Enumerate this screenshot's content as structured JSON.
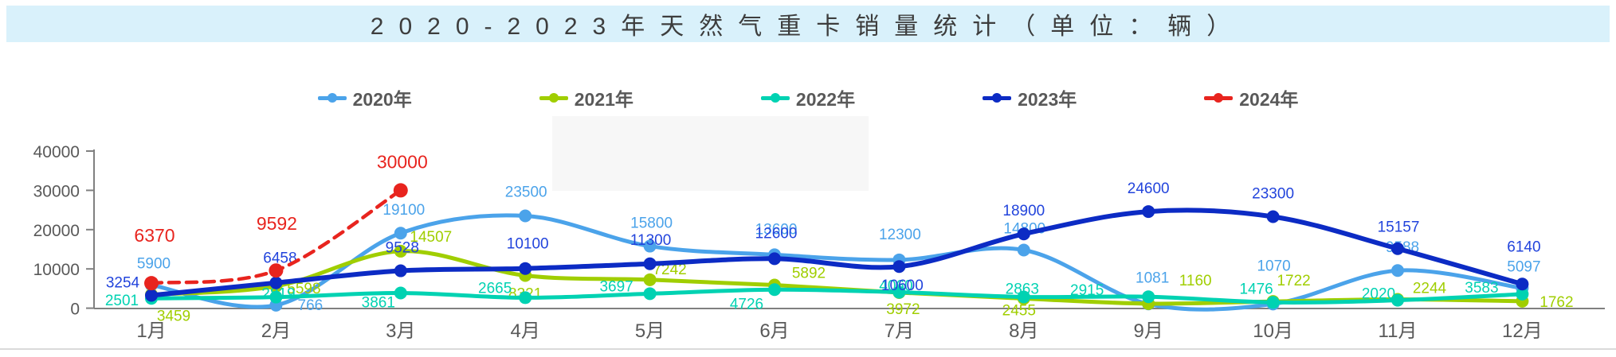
{
  "title_bar": {
    "text": "2020-2023年天然气重卡销量统计（单位：辆）",
    "bg": "#D9F1FB",
    "text_color": "#3D3D3D"
  },
  "axis": {
    "tick_label_color": "#595959",
    "axis_line_color": "#808080"
  },
  "chart_data": {
    "type": "line",
    "title": "2020-2023年天然气重卡销量统计（单位：辆）",
    "xlabel": "",
    "ylabel": "",
    "ylim": [
      0,
      40000
    ],
    "yticks": [
      0,
      10000,
      20000,
      30000,
      40000
    ],
    "grid": false,
    "legend_position": "top",
    "smooth": true,
    "categories": [
      "1月",
      "2月",
      "3月",
      "4月",
      "5月",
      "6月",
      "7月",
      "8月",
      "9月",
      "10月",
      "11月",
      "12月"
    ],
    "series": [
      {
        "name": "2020年",
        "color": "#4BA3EA",
        "label_color": "#4BA3EA",
        "dashed": false,
        "line_width": 5,
        "values": [
          5900,
          766,
          19100,
          23500,
          15800,
          13600,
          12300,
          14800,
          1081,
          1070,
          9588,
          5097
        ]
      },
      {
        "name": "2021年",
        "color": "#A0CE00",
        "label_color": "#A0CE00",
        "dashed": false,
        "line_width": 5,
        "values": [
          3459,
          5598,
          14507,
          8321,
          7242,
          5892,
          3972,
          2455,
          1160,
          1722,
          2244,
          1762
        ]
      },
      {
        "name": "2022年",
        "color": "#00D2B2",
        "label_color": "#00D2B2",
        "dashed": false,
        "line_width": 5,
        "values": [
          2501,
          2819,
          3861,
          2665,
          3697,
          4726,
          4060,
          2863,
          2915,
          1476,
          2020,
          3583
        ]
      },
      {
        "name": "2023年",
        "color": "#0C2BC4",
        "label_color": "#2244DC",
        "dashed": false,
        "line_width": 6,
        "values": [
          3254,
          6458,
          9528,
          10100,
          11300,
          12600,
          10600,
          18900,
          24600,
          23300,
          15157,
          6140
        ]
      },
      {
        "name": "2024年",
        "color": "#E8241E",
        "label_color": "#E8241E",
        "dashed": true,
        "line_width": 4.5,
        "values": [
          6370,
          9592,
          30000,
          null,
          null,
          null,
          null,
          null,
          null,
          null,
          null,
          null
        ]
      }
    ]
  },
  "layout_hints": {
    "default_offset": [
      0,
      -16
    ],
    "label_offsets": {
      "0": [
        [
          3,
          -21
        ],
        [
          43,
          6
        ],
        [
          4,
          -23
        ],
        [
          1,
          -24
        ],
        [
          2,
          -23
        ],
        [
          2,
          -26
        ],
        [
          1,
          -26
        ],
        [
          1,
          -21
        ],
        [
          5,
          -27
        ],
        [
          1,
          -42
        ],
        [
          6,
          -23
        ],
        [
          2,
          -21
        ]
      ],
      "1": [
        [
          28,
          33
        ],
        [
          35,
          9
        ],
        [
          38,
          -12
        ],
        [
          0,
          29
        ],
        [
          25,
          -7
        ],
        [
          43,
          -9
        ],
        [
          5,
          27
        ],
        [
          -6,
          21
        ],
        [
          59,
          -23
        ],
        [
          26,
          -20
        ],
        [
          40,
          -8
        ],
        [
          43,
          7
        ]
      ],
      "2": [
        [
          -37,
          9
        ],
        [
          3,
          2
        ],
        [
          -28,
          18
        ],
        [
          -38,
          -6
        ],
        [
          -42,
          -3
        ],
        [
          -35,
          24
        ],
        [
          -4,
          -2
        ],
        [
          -2,
          -4
        ],
        [
          -77,
          -2
        ],
        [
          -21,
          -11
        ],
        [
          -24,
          -2
        ],
        [
          -51,
          -2
        ]
      ],
      "3": [
        [
          -36,
          -10
        ],
        [
          5,
          -25
        ],
        [
          2,
          -23
        ],
        [
          3,
          -25
        ],
        [
          1,
          -24
        ],
        [
          2,
          -26
        ],
        [
          4,
          30
        ],
        [
          0,
          -23
        ],
        [
          0,
          -23
        ],
        [
          0,
          -23
        ],
        [
          1,
          -21
        ],
        [
          2,
          -41
        ]
      ],
      "4": [
        [
          4,
          -52
        ],
        [
          1,
          -51
        ],
        [
          2,
          -28
        ]
      ]
    }
  }
}
